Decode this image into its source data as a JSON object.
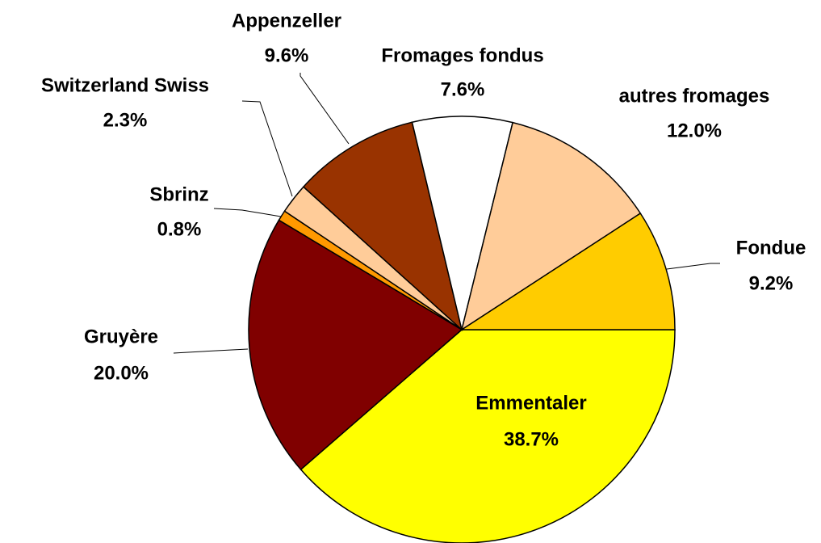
{
  "chart_data": {
    "type": "pie",
    "categories": [
      "Emmentaler",
      "Gruyère",
      "Sbrinz",
      "Switzerland Swiss",
      "Appenzeller",
      "Fromages fondus",
      "autres fromages",
      "Fondue"
    ],
    "values": [
      38.7,
      20.0,
      0.8,
      2.3,
      9.6,
      7.6,
      12.0,
      9.2
    ],
    "value_labels": [
      "38.7%",
      "20.0%",
      "0.8%",
      "2.3%",
      "9.6%",
      "7.6%",
      "12.0%",
      "9.2%"
    ],
    "colors": [
      "#ffff00",
      "#800000",
      "#ff9900",
      "#ffcc99",
      "#993300",
      "#ffffff",
      "#ffcc99",
      "#ffcc00"
    ]
  }
}
